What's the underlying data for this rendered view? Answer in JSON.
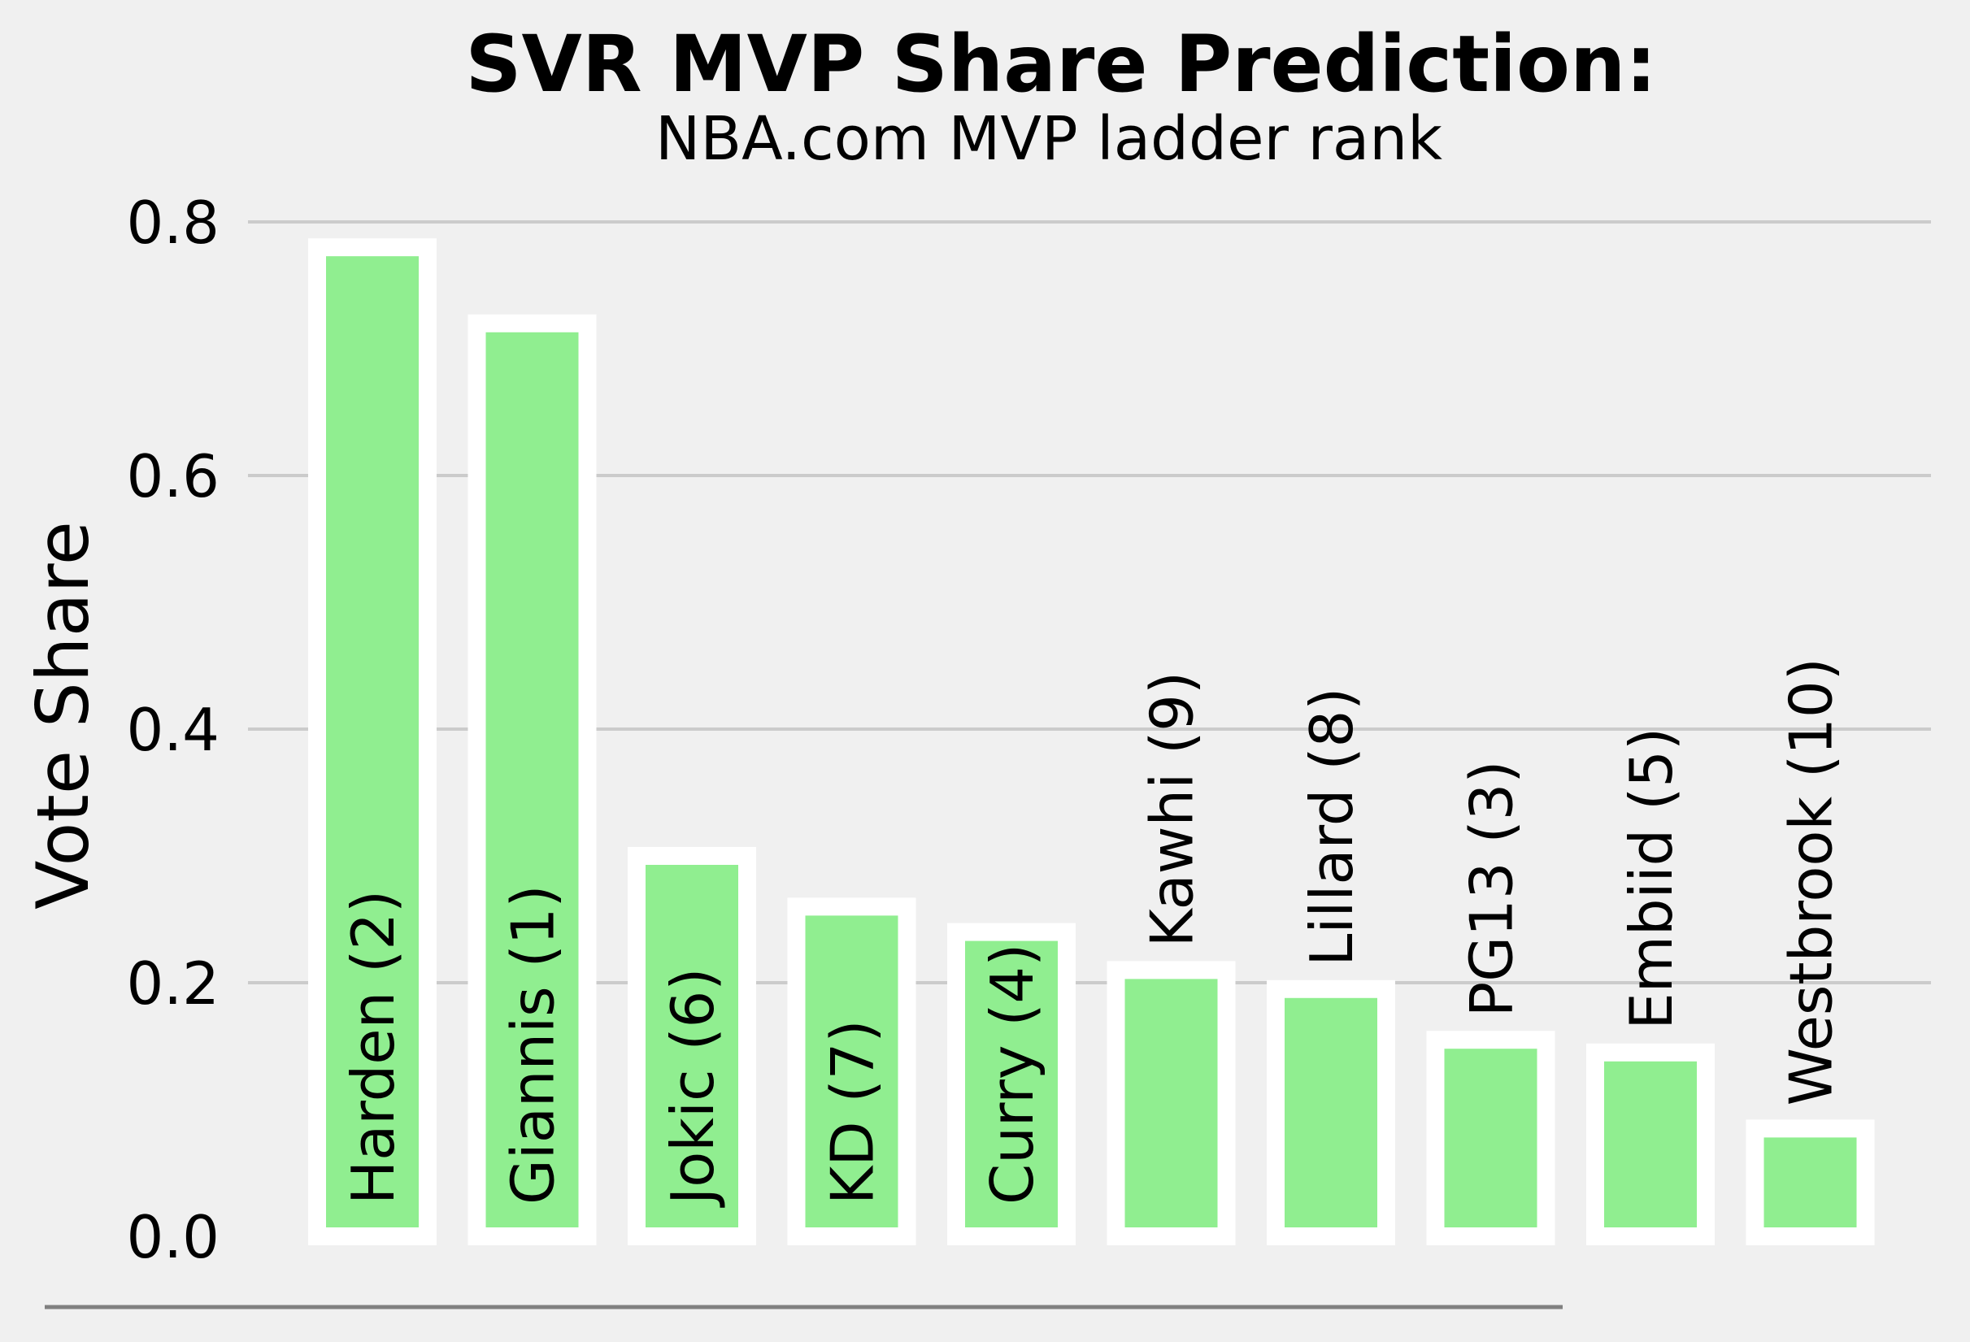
{
  "chart_data": {
    "type": "bar",
    "title": "SVR MVP Share Prediction:",
    "subtitle": "NBA.com MVP ladder rank",
    "xlabel": "",
    "ylabel": "Vote Share",
    "ylim": [
      0,
      0.8
    ],
    "yticks": [
      "0.0",
      "0.2",
      "0.4",
      "0.6",
      "0.8"
    ],
    "ytick_values": [
      0,
      0.2,
      0.4,
      0.6,
      0.8
    ],
    "grid": true,
    "bar_color": "#90ee90",
    "bar_edge_color": "#ffffff",
    "background_color": "#f0f0f0",
    "categories": [
      "Harden (2)",
      "Giannis (1)",
      "Jokic (6)",
      "KD (7)",
      "Curry (4)",
      "Kawhi (9)",
      "Lillard (8)",
      "PG13 (3)",
      "Embiid (5)",
      "Westbrook (10)"
    ],
    "values": [
      0.78,
      0.72,
      0.3,
      0.26,
      0.24,
      0.21,
      0.195,
      0.155,
      0.145,
      0.085
    ],
    "label_position": [
      "inside",
      "inside",
      "inside",
      "inside",
      "inside",
      "above",
      "above",
      "above",
      "above",
      "above"
    ]
  }
}
